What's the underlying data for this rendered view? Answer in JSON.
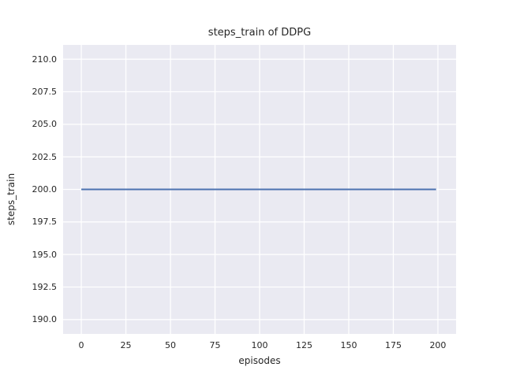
{
  "chart_data": {
    "type": "line",
    "title": "steps_train of DDPG",
    "xlabel": "episodes",
    "ylabel": "steps_train",
    "x_ticks": {
      "values": [
        0,
        25,
        50,
        75,
        100,
        125,
        150,
        175,
        200
      ],
      "labels": [
        "0",
        "25",
        "50",
        "75",
        "100",
        "125",
        "150",
        "175",
        "200"
      ]
    },
    "y_ticks": {
      "values": [
        190.0,
        192.5,
        195.0,
        197.5,
        200.0,
        202.5,
        205.0,
        207.5,
        210.0
      ],
      "labels": [
        "190.0",
        "192.5",
        "195.0",
        "197.5",
        "200.0",
        "202.5",
        "205.0",
        "207.5",
        "210.0"
      ]
    },
    "xlim": [
      -10.2,
      210.2
    ],
    "ylim": [
      188.9,
      211.1
    ],
    "grid": true,
    "legend": "none",
    "series": [
      {
        "name": "steps_train",
        "color": "#4C72B0",
        "x": [
          0,
          199
        ],
        "y": [
          200.0,
          200.0
        ]
      }
    ],
    "colors": {
      "plot_background": "#EAEAF2",
      "grid_line": "#FFFFFF",
      "text": "#262626",
      "figure_background": "#FFFFFF"
    }
  }
}
